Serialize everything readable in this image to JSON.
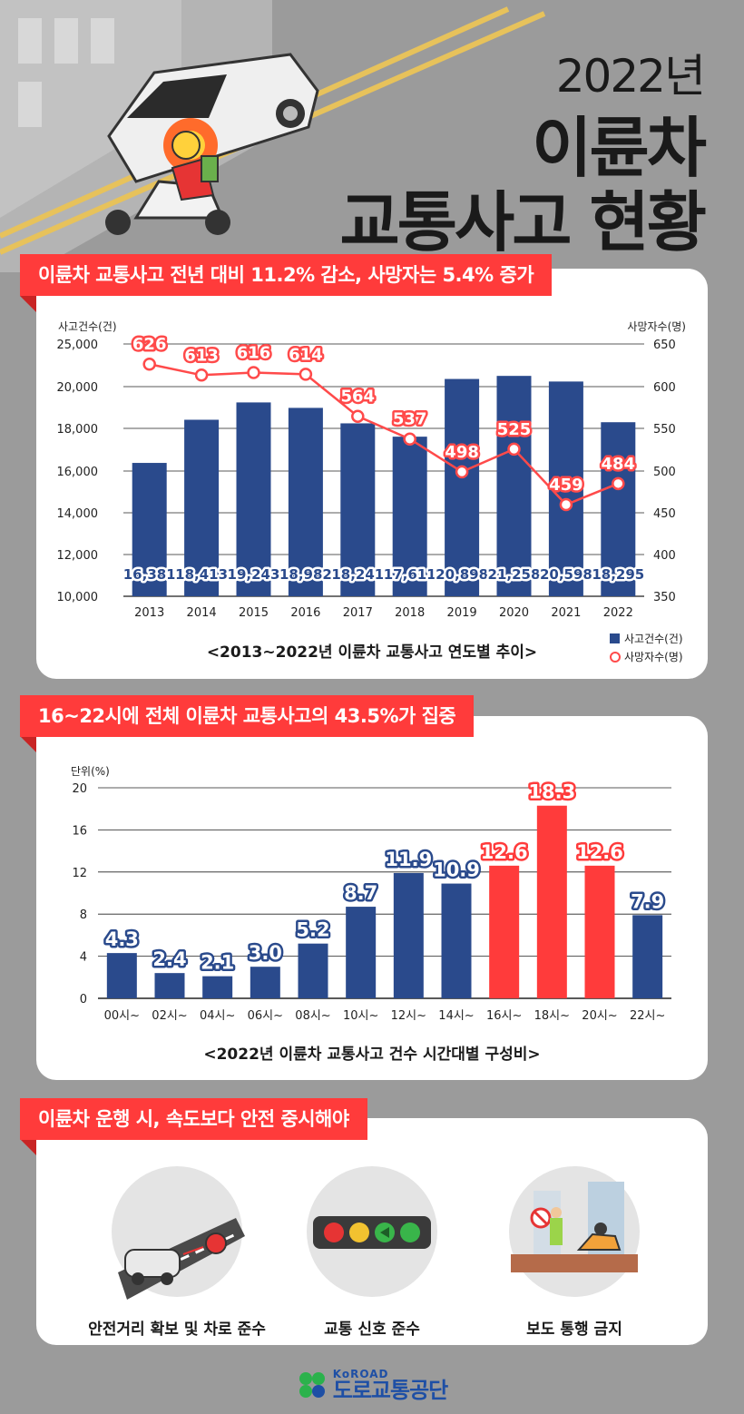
{
  "title": {
    "year": "2022년",
    "main": "이륜차",
    "sub": "교통사고 현황"
  },
  "section1": {
    "banner": "이륜차 교통사고 전년 대비 11.2% 감소, 사망자는 5.4% 증가",
    "caption": "<2013~2022년 이륜차 교통사고 연도별 추이>"
  },
  "section2": {
    "banner": "16~22시에 전체 이륜차 교통사고의 43.5%가 집중",
    "caption": "<2022년 이륜차 교통사고 건수 시간대별 구성비>"
  },
  "section3": {
    "banner": "이륜차 운행 시, 속도보다 안전 중시해야",
    "items": [
      "안전거리 확보 및 차로 준수",
      "교통 신호 준수",
      "보도 통행 금지"
    ]
  },
  "footer": {
    "brand_en": "KoROAD",
    "brand_ko": "도로교통공단"
  },
  "colors": {
    "bar": "#2a4a8c",
    "highlight": "#ff3b3b",
    "line": "#ff4a4a"
  },
  "chart_data": [
    {
      "type": "bar",
      "title": "<2013~2022년 이륜차 교통사고 연도별 추이>",
      "categories": [
        "2013",
        "2014",
        "2015",
        "2016",
        "2017",
        "2018",
        "2019",
        "2020",
        "2021",
        "2022"
      ],
      "series": [
        {
          "name": "사고건수(건)",
          "type": "bar",
          "axis": "left",
          "values": [
            16381,
            18413,
            19243,
            18982,
            18241,
            17611,
            20898,
            21258,
            20598,
            18295
          ],
          "labels": [
            "16,381",
            "18,413",
            "19,243",
            "18,982",
            "18,241",
            "17,611",
            "20,898",
            "21,258",
            "20,598",
            "18,295"
          ]
        },
        {
          "name": "사망자수(명)",
          "type": "line",
          "axis": "right",
          "values": [
            626,
            613,
            616,
            614,
            564,
            537,
            498,
            525,
            459,
            484
          ],
          "labels": [
            "626",
            "613",
            "616",
            "614",
            "564",
            "537",
            "498",
            "525",
            "459",
            "484"
          ]
        }
      ],
      "ylabel_left": "사고건수(건)",
      "ylabel_right": "사망자수(명)",
      "yticks_left": [
        "10,000",
        "12,000",
        "14,000",
        "16,000",
        "18,000",
        "20,000",
        "25,000"
      ],
      "yticks_right": [
        "350",
        "400",
        "450",
        "500",
        "550",
        "600",
        "650"
      ],
      "ylim_right": [
        350,
        650
      ]
    },
    {
      "type": "bar",
      "title": "<2022년 이륜차 교통사고 건수 시간대별 구성비>",
      "categories": [
        "00시~",
        "02시~",
        "04시~",
        "06시~",
        "08시~",
        "10시~",
        "12시~",
        "14시~",
        "16시~",
        "18시~",
        "20시~",
        "22시~"
      ],
      "values": [
        4.3,
        2.4,
        2.1,
        3.0,
        5.2,
        8.7,
        11.9,
        10.9,
        12.6,
        18.3,
        12.6,
        7.9
      ],
      "labels": [
        "4.3",
        "2.4",
        "2.1",
        "3.0",
        "5.2",
        "8.7",
        "11.9",
        "10.9",
        "12.6",
        "18.3",
        "12.6",
        "7.9"
      ],
      "highlight": [
        "16시~",
        "18시~",
        "20시~"
      ],
      "ylabel": "단위(%)",
      "yticks": [
        "0",
        "4",
        "8",
        "12",
        "16",
        "20"
      ],
      "ylim": [
        0,
        20
      ]
    }
  ]
}
